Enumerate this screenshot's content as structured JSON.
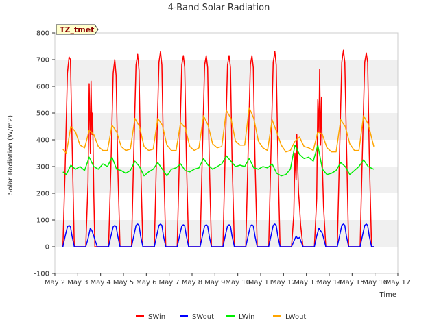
{
  "chart_data": {
    "type": "line",
    "title": "4-Band Solar Radiation",
    "site_label": "TZ_tmet",
    "xlabel": "Time",
    "ylabel": "Solar Radiation (W/m2)",
    "ylim": [
      -100,
      800
    ],
    "yticks": [
      -100,
      0,
      100,
      200,
      300,
      400,
      500,
      600,
      700,
      800
    ],
    "xlim": [
      2,
      17
    ],
    "xticks": [
      {
        "day": 2,
        "label": "May 2"
      },
      {
        "day": 3,
        "label": "May 3"
      },
      {
        "day": 4,
        "label": "May 4"
      },
      {
        "day": 5,
        "label": "May 5"
      },
      {
        "day": 6,
        "label": "May 6"
      },
      {
        "day": 7,
        "label": "May 7"
      },
      {
        "day": 8,
        "label": "May 8"
      },
      {
        "day": 9,
        "label": "May 9"
      },
      {
        "day": 10,
        "label": "May 10"
      },
      {
        "day": 11,
        "label": "May 11"
      },
      {
        "day": 12,
        "label": "May 12"
      },
      {
        "day": 13,
        "label": "May 13"
      },
      {
        "day": 14,
        "label": "May 14"
      },
      {
        "day": 15,
        "label": "May 15"
      },
      {
        "day": 16,
        "label": "May 16"
      },
      {
        "day": 17,
        "label": "May 17"
      }
    ],
    "grid": "horizontal bands",
    "legend_position": "bottom",
    "x_unit": "day of May 2021-style calendar (fractional day)",
    "series": [
      {
        "name": "SWin",
        "color": "#ff0000",
        "x": [
          2.35,
          2.45,
          2.55,
          2.62,
          2.68,
          2.75,
          2.85,
          2.95,
          3.35,
          3.45,
          3.5,
          3.55,
          3.58,
          3.62,
          3.65,
          3.7,
          3.75,
          3.85,
          4.35,
          4.45,
          4.55,
          4.62,
          4.68,
          4.75,
          4.85,
          5.35,
          5.45,
          5.55,
          5.62,
          5.68,
          5.75,
          5.85,
          6.35,
          6.45,
          6.55,
          6.62,
          6.68,
          6.75,
          6.85,
          7.35,
          7.45,
          7.55,
          7.62,
          7.68,
          7.75,
          7.85,
          8.35,
          8.45,
          8.55,
          8.62,
          8.68,
          8.75,
          8.85,
          9.35,
          9.45,
          9.55,
          9.62,
          9.68,
          9.75,
          9.85,
          10.35,
          10.45,
          10.55,
          10.62,
          10.68,
          10.75,
          10.85,
          11.35,
          11.45,
          11.55,
          11.62,
          11.68,
          11.75,
          11.85,
          12.35,
          12.45,
          12.5,
          12.55,
          12.58,
          12.62,
          12.66,
          12.7,
          12.75,
          12.85,
          13.35,
          13.45,
          13.5,
          13.55,
          13.58,
          13.62,
          13.66,
          13.7,
          13.75,
          13.85,
          14.35,
          14.45,
          14.55,
          14.62,
          14.68,
          14.75,
          14.85,
          15.35,
          15.45,
          15.55,
          15.62,
          15.68,
          15.75,
          15.85,
          15.95
        ],
        "y": [
          0,
          300,
          650,
          710,
          700,
          400,
          0,
          0,
          0,
          240,
          610,
          350,
          620,
          420,
          500,
          200,
          0,
          0,
          0,
          300,
          650,
          700,
          640,
          300,
          0,
          0,
          350,
          680,
          720,
          660,
          320,
          0,
          0,
          350,
          690,
          730,
          680,
          350,
          0,
          0,
          350,
          680,
          715,
          670,
          330,
          0,
          0,
          350,
          680,
          715,
          670,
          330,
          0,
          0,
          350,
          680,
          715,
          670,
          330,
          0,
          0,
          350,
          680,
          715,
          670,
          330,
          0,
          0,
          350,
          690,
          730,
          680,
          350,
          0,
          0,
          120,
          350,
          250,
          420,
          300,
          200,
          150,
          80,
          0,
          0,
          180,
          550,
          430,
          665,
          380,
          560,
          300,
          150,
          0,
          0,
          350,
          690,
          735,
          690,
          400,
          0,
          0,
          350,
          690,
          725,
          690,
          350,
          0,
          0
        ],
        "values": [
          0,
          300,
          650,
          710,
          700,
          400,
          0,
          0,
          0,
          240,
          610,
          350,
          620,
          420,
          500,
          200,
          0,
          0,
          0,
          300,
          650,
          700,
          640,
          300,
          0,
          0,
          350,
          680,
          720,
          660,
          320,
          0,
          0,
          350,
          690,
          730,
          680,
          350,
          0,
          0,
          350,
          680,
          715,
          670,
          330,
          0,
          0,
          350,
          680,
          715,
          670,
          330,
          0,
          0,
          350,
          680,
          715,
          670,
          330,
          0,
          0,
          350,
          680,
          715,
          670,
          330,
          0,
          0,
          350,
          690,
          730,
          680,
          350,
          0,
          0,
          120,
          350,
          250,
          420,
          300,
          200,
          150,
          80,
          0,
          0,
          180,
          550,
          430,
          665,
          380,
          560,
          300,
          150,
          0,
          0,
          350,
          690,
          735,
          690,
          400,
          0,
          0,
          350,
          690,
          725,
          690,
          350,
          0,
          0
        ]
      },
      {
        "name": "SWout",
        "color": "#0000ff",
        "x": [
          2.35,
          2.45,
          2.55,
          2.62,
          2.68,
          2.75,
          2.85,
          2.95,
          3.35,
          3.45,
          3.55,
          3.62,
          3.7,
          3.85,
          4.35,
          4.45,
          4.55,
          4.62,
          4.68,
          4.75,
          4.85,
          5.35,
          5.45,
          5.55,
          5.62,
          5.68,
          5.75,
          5.85,
          6.35,
          6.45,
          6.55,
          6.62,
          6.68,
          6.75,
          6.85,
          7.35,
          7.45,
          7.55,
          7.62,
          7.68,
          7.75,
          7.85,
          8.35,
          8.45,
          8.55,
          8.62,
          8.68,
          8.75,
          8.85,
          9.35,
          9.45,
          9.55,
          9.62,
          9.68,
          9.75,
          9.85,
          10.35,
          10.45,
          10.55,
          10.62,
          10.68,
          10.75,
          10.85,
          11.35,
          11.45,
          11.55,
          11.62,
          11.68,
          11.75,
          11.85,
          12.35,
          12.45,
          12.55,
          12.62,
          12.7,
          12.85,
          13.35,
          13.45,
          13.55,
          13.62,
          13.7,
          13.85,
          14.35,
          14.45,
          14.55,
          14.62,
          14.68,
          14.75,
          14.85,
          15.35,
          15.45,
          15.55,
          15.62,
          15.68,
          15.75,
          15.85,
          15.95
        ],
        "y": [
          0,
          40,
          75,
          80,
          75,
          40,
          0,
          0,
          0,
          30,
          70,
          60,
          40,
          0,
          0,
          40,
          75,
          80,
          75,
          40,
          0,
          0,
          40,
          80,
          85,
          80,
          40,
          0,
          0,
          40,
          80,
          85,
          80,
          40,
          0,
          0,
          40,
          78,
          82,
          78,
          40,
          0,
          0,
          40,
          78,
          82,
          78,
          40,
          0,
          0,
          40,
          78,
          82,
          78,
          40,
          0,
          0,
          40,
          78,
          82,
          78,
          40,
          0,
          0,
          40,
          80,
          85,
          80,
          40,
          0,
          0,
          20,
          40,
          30,
          35,
          0,
          0,
          40,
          70,
          60,
          50,
          0,
          0,
          40,
          80,
          85,
          80,
          40,
          0,
          0,
          40,
          80,
          85,
          80,
          40,
          0,
          0
        ],
        "values": [
          0,
          40,
          75,
          80,
          75,
          40,
          0,
          0,
          0,
          30,
          70,
          60,
          40,
          0,
          0,
          40,
          75,
          80,
          75,
          40,
          0,
          0,
          40,
          80,
          85,
          80,
          40,
          0,
          0,
          40,
          80,
          85,
          80,
          40,
          0,
          0,
          40,
          78,
          82,
          78,
          40,
          0,
          0,
          40,
          78,
          82,
          78,
          40,
          0,
          0,
          40,
          78,
          82,
          78,
          40,
          0,
          0,
          40,
          78,
          82,
          78,
          40,
          0,
          0,
          40,
          80,
          85,
          80,
          40,
          0,
          0,
          20,
          40,
          30,
          35,
          0,
          0,
          40,
          70,
          60,
          50,
          0,
          0,
          40,
          80,
          85,
          80,
          40,
          0,
          0,
          40,
          80,
          85,
          80,
          40,
          0,
          0
        ]
      },
      {
        "name": "LWin",
        "color": "#00ee00",
        "x": [
          2.35,
          2.5,
          2.7,
          2.9,
          3.1,
          3.3,
          3.5,
          3.7,
          3.9,
          4.1,
          4.3,
          4.5,
          4.7,
          4.9,
          5.1,
          5.3,
          5.5,
          5.7,
          5.9,
          6.1,
          6.3,
          6.5,
          6.7,
          6.9,
          7.1,
          7.3,
          7.5,
          7.7,
          7.9,
          8.1,
          8.3,
          8.5,
          8.7,
          8.9,
          9.1,
          9.3,
          9.5,
          9.7,
          9.9,
          10.1,
          10.3,
          10.5,
          10.7,
          10.9,
          11.1,
          11.3,
          11.5,
          11.7,
          11.9,
          12.1,
          12.3,
          12.5,
          12.7,
          12.9,
          13.1,
          13.3,
          13.5,
          13.7,
          13.9,
          14.1,
          14.3,
          14.5,
          14.7,
          14.9,
          15.1,
          15.3,
          15.5,
          15.7,
          15.95
        ],
        "y": [
          280,
          270,
          305,
          290,
          300,
          285,
          335,
          300,
          290,
          310,
          300,
          335,
          290,
          285,
          275,
          285,
          320,
          300,
          265,
          280,
          290,
          315,
          290,
          265,
          290,
          295,
          310,
          285,
          280,
          290,
          295,
          330,
          305,
          290,
          300,
          310,
          340,
          320,
          300,
          305,
          300,
          330,
          295,
          290,
          300,
          295,
          310,
          275,
          265,
          270,
          290,
          380,
          345,
          330,
          335,
          320,
          380,
          290,
          270,
          275,
          285,
          315,
          300,
          270,
          285,
          300,
          325,
          300,
          290
        ],
        "values": [
          280,
          270,
          305,
          290,
          300,
          285,
          335,
          300,
          290,
          310,
          300,
          335,
          290,
          285,
          275,
          285,
          320,
          300,
          265,
          280,
          290,
          315,
          290,
          265,
          290,
          295,
          310,
          285,
          280,
          290,
          295,
          330,
          305,
          290,
          300,
          310,
          340,
          320,
          300,
          305,
          300,
          330,
          295,
          290,
          300,
          295,
          310,
          275,
          265,
          270,
          290,
          380,
          345,
          330,
          335,
          320,
          380,
          290,
          270,
          275,
          285,
          315,
          300,
          270,
          285,
          300,
          325,
          300,
          290
        ]
      },
      {
        "name": "LWout",
        "color": "#ffa500",
        "x": [
          2.35,
          2.5,
          2.7,
          2.9,
          3.1,
          3.3,
          3.5,
          3.7,
          3.9,
          4.1,
          4.3,
          4.5,
          4.7,
          4.9,
          5.1,
          5.3,
          5.5,
          5.7,
          5.9,
          6.1,
          6.3,
          6.5,
          6.7,
          6.9,
          7.1,
          7.3,
          7.5,
          7.7,
          7.9,
          8.1,
          8.3,
          8.5,
          8.7,
          8.9,
          9.1,
          9.3,
          9.5,
          9.7,
          9.9,
          10.1,
          10.3,
          10.5,
          10.7,
          10.9,
          11.1,
          11.3,
          11.5,
          11.7,
          11.9,
          12.1,
          12.3,
          12.5,
          12.7,
          12.9,
          13.1,
          13.3,
          13.5,
          13.7,
          13.9,
          14.1,
          14.3,
          14.5,
          14.7,
          14.9,
          15.1,
          15.3,
          15.5,
          15.7,
          15.95
        ],
        "y": [
          365,
          350,
          450,
          430,
          380,
          370,
          435,
          420,
          375,
          360,
          360,
          455,
          430,
          375,
          360,
          365,
          480,
          450,
          375,
          360,
          365,
          480,
          455,
          380,
          360,
          360,
          465,
          445,
          375,
          360,
          370,
          490,
          455,
          385,
          370,
          375,
          510,
          480,
          395,
          380,
          380,
          520,
          480,
          395,
          370,
          360,
          475,
          430,
          380,
          355,
          360,
          395,
          410,
          375,
          370,
          360,
          430,
          420,
          370,
          355,
          355,
          475,
          450,
          385,
          360,
          360,
          490,
          460,
          375
        ],
        "values": [
          365,
          350,
          450,
          430,
          380,
          370,
          435,
          420,
          375,
          360,
          360,
          455,
          430,
          375,
          360,
          365,
          480,
          450,
          375,
          360,
          365,
          480,
          455,
          380,
          360,
          360,
          465,
          445,
          375,
          360,
          370,
          490,
          455,
          385,
          370,
          375,
          510,
          480,
          395,
          380,
          380,
          520,
          480,
          395,
          370,
          360,
          475,
          430,
          380,
          355,
          360,
          395,
          410,
          375,
          370,
          360,
          430,
          420,
          370,
          355,
          355,
          475,
          450,
          385,
          360,
          360,
          490,
          460,
          375
        ]
      }
    ]
  }
}
